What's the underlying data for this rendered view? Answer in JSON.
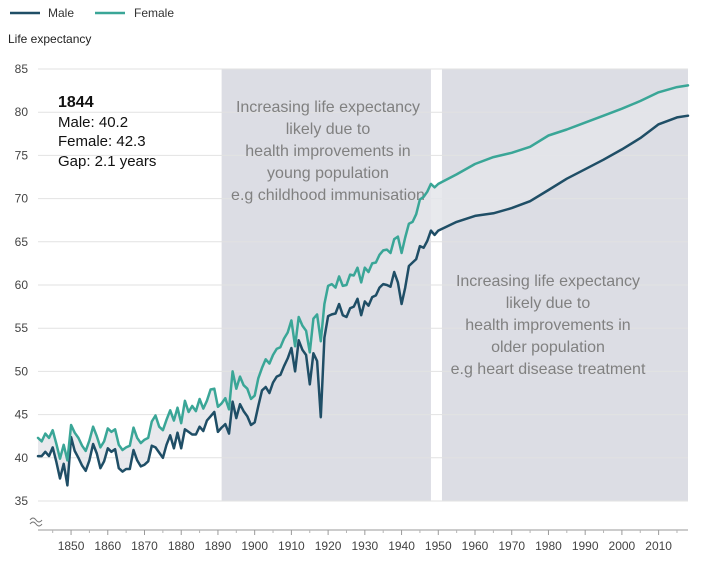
{
  "chart_data": {
    "type": "line",
    "ylabel": "Life expectancy",
    "xlim": [
      1841,
      2018
    ],
    "ylim": [
      35,
      85
    ],
    "yticks": [
      35,
      40,
      45,
      50,
      55,
      60,
      65,
      70,
      75,
      80,
      85
    ],
    "xticks": [
      1850,
      1860,
      1870,
      1880,
      1890,
      1900,
      1910,
      1920,
      1930,
      1940,
      1950,
      1960,
      1970,
      1980,
      1990,
      2000,
      2010
    ],
    "grid": "horizontal",
    "legend_position": "top-left",
    "axis_break": true,
    "colors": {
      "male": "#1f4e66",
      "female": "#3aa697",
      "gap": "#e4e5ea",
      "period": "#dcdde4",
      "grid": "#e2e2e2"
    },
    "series": [
      {
        "name": "Male",
        "x": [
          1841,
          1842,
          1843,
          1844,
          1845,
          1846,
          1847,
          1848,
          1849,
          1850,
          1851,
          1852,
          1853,
          1854,
          1855,
          1856,
          1857,
          1858,
          1859,
          1860,
          1861,
          1862,
          1863,
          1864,
          1865,
          1866,
          1867,
          1868,
          1869,
          1870,
          1871,
          1872,
          1873,
          1874,
          1875,
          1876,
          1877,
          1878,
          1879,
          1880,
          1881,
          1882,
          1883,
          1884,
          1885,
          1886,
          1887,
          1888,
          1889,
          1890,
          1891,
          1892,
          1893,
          1894,
          1895,
          1896,
          1897,
          1898,
          1899,
          1900,
          1901,
          1902,
          1903,
          1904,
          1905,
          1906,
          1907,
          1908,
          1909,
          1910,
          1911,
          1912,
          1913,
          1914,
          1915,
          1916,
          1917,
          1918,
          1919,
          1920,
          1921,
          1922,
          1923,
          1924,
          1925,
          1926,
          1927,
          1928,
          1929,
          1930,
          1931,
          1932,
          1933,
          1934,
          1935,
          1936,
          1937,
          1938,
          1939,
          1940,
          1941,
          1942,
          1943,
          1944,
          1945,
          1946,
          1947,
          1948,
          1949,
          1950,
          1955,
          1960,
          1965,
          1970,
          1975,
          1980,
          1985,
          1990,
          1995,
          2000,
          2005,
          2010,
          2015,
          2018
        ],
        "y": [
          40.2,
          40.2,
          40.7,
          40.2,
          41.2,
          39.5,
          37.6,
          39.3,
          36.8,
          42.4,
          40.8,
          40.0,
          39.1,
          38.5,
          39.7,
          41.6,
          40.5,
          38.8,
          39.6,
          41.1,
          40.7,
          41.0,
          38.8,
          38.4,
          38.7,
          38.7,
          40.9,
          39.7,
          39.0,
          39.2,
          39.6,
          41.4,
          41.2,
          40.6,
          40.0,
          41.5,
          42.6,
          41.1,
          42.9,
          41.1,
          43.3,
          43.0,
          42.7,
          42.7,
          43.6,
          43.1,
          44.3,
          44.8,
          45.3,
          43.0,
          43.5,
          43.9,
          42.8,
          46.5,
          44.6,
          46.2,
          45.4,
          44.8,
          43.8,
          44.1,
          46.0,
          47.8,
          48.2,
          47.5,
          48.7,
          49.4,
          49.6,
          50.6,
          51.5,
          52.7,
          50.0,
          53.6,
          52.5,
          51.9,
          48.5,
          52.1,
          51.2,
          44.7,
          53.9,
          56.4,
          56.6,
          56.7,
          57.8,
          56.5,
          56.3,
          57.3,
          57.5,
          58.4,
          56.5,
          58.1,
          57.6,
          58.6,
          58.8,
          59.7,
          60.1,
          60.0,
          59.8,
          61.5,
          60.3,
          57.8,
          59.7,
          62.2,
          62.6,
          63.0,
          64.5,
          64.3,
          65.1,
          66.3,
          65.8,
          66.3,
          67.3,
          68.0,
          68.3,
          68.9,
          69.7,
          71.0,
          72.3,
          73.4,
          74.5,
          75.7,
          77.0,
          78.6,
          79.4,
          79.6
        ]
      },
      {
        "name": "Female",
        "x": [
          1841,
          1842,
          1843,
          1844,
          1845,
          1846,
          1847,
          1848,
          1849,
          1850,
          1851,
          1852,
          1853,
          1854,
          1855,
          1856,
          1857,
          1858,
          1859,
          1860,
          1861,
          1862,
          1863,
          1864,
          1865,
          1866,
          1867,
          1868,
          1869,
          1870,
          1871,
          1872,
          1873,
          1874,
          1875,
          1876,
          1877,
          1878,
          1879,
          1880,
          1881,
          1882,
          1883,
          1884,
          1885,
          1886,
          1887,
          1888,
          1889,
          1890,
          1891,
          1892,
          1893,
          1894,
          1895,
          1896,
          1897,
          1898,
          1899,
          1900,
          1901,
          1902,
          1903,
          1904,
          1905,
          1906,
          1907,
          1908,
          1909,
          1910,
          1911,
          1912,
          1913,
          1914,
          1915,
          1916,
          1917,
          1918,
          1919,
          1920,
          1921,
          1922,
          1923,
          1924,
          1925,
          1926,
          1927,
          1928,
          1929,
          1930,
          1931,
          1932,
          1933,
          1934,
          1935,
          1936,
          1937,
          1938,
          1939,
          1940,
          1941,
          1942,
          1943,
          1944,
          1945,
          1946,
          1947,
          1948,
          1949,
          1950,
          1955,
          1960,
          1965,
          1970,
          1975,
          1980,
          1985,
          1990,
          1995,
          2000,
          2005,
          2010,
          2015,
          2018
        ],
        "y": [
          42.3,
          41.9,
          42.8,
          42.3,
          43.2,
          41.6,
          39.9,
          41.5,
          39.7,
          43.8,
          42.9,
          42.3,
          41.4,
          40.8,
          42.0,
          43.6,
          42.5,
          41.2,
          41.9,
          43.4,
          43.0,
          43.3,
          41.5,
          40.9,
          41.2,
          41.4,
          43.5,
          42.3,
          41.7,
          42.1,
          42.3,
          44.2,
          44.9,
          43.6,
          43.2,
          44.4,
          45.5,
          44.3,
          45.8,
          44.0,
          46.6,
          45.3,
          46.0,
          45.4,
          46.8,
          45.7,
          46.6,
          47.9,
          48.0,
          45.9,
          46.3,
          46.9,
          45.6,
          50.0,
          48.0,
          49.4,
          48.4,
          48.0,
          46.8,
          47.2,
          49.2,
          50.4,
          51.4,
          50.9,
          51.9,
          52.6,
          52.8,
          53.8,
          54.5,
          55.9,
          52.9,
          56.3,
          55.3,
          54.7,
          52.2,
          56.1,
          56.6,
          53.5,
          57.8,
          59.9,
          60.1,
          59.7,
          61.0,
          59.9,
          60.0,
          61.2,
          61.1,
          62.0,
          60.3,
          62.0,
          61.5,
          62.5,
          62.6,
          63.5,
          64.0,
          64.1,
          63.7,
          65.3,
          65.6,
          63.7,
          65.5,
          67.1,
          67.3,
          68.2,
          69.9,
          70.2,
          70.8,
          71.7,
          71.3,
          71.7,
          72.8,
          74.0,
          74.8,
          75.3,
          76.0,
          77.3,
          78.0,
          78.8,
          79.6,
          80.4,
          81.3,
          82.3,
          82.9,
          83.1
        ]
      }
    ],
    "highlight_periods": [
      [
        1891,
        1948
      ],
      [
        1951,
        2018
      ]
    ],
    "annotations": [
      [
        "Increasing life expectancy",
        "likely due to",
        "health improvements in",
        "young population",
        "e.g childhood immunisation"
      ],
      [
        "Increasing life expectancy",
        "likely due to",
        "health improvements in",
        "older population",
        "e.g heart disease treatment"
      ]
    ],
    "tooltip": {
      "year": "1844",
      "lines": [
        "Male: 40.2",
        "Female: 42.3",
        "Gap: 2.1 years"
      ]
    }
  }
}
